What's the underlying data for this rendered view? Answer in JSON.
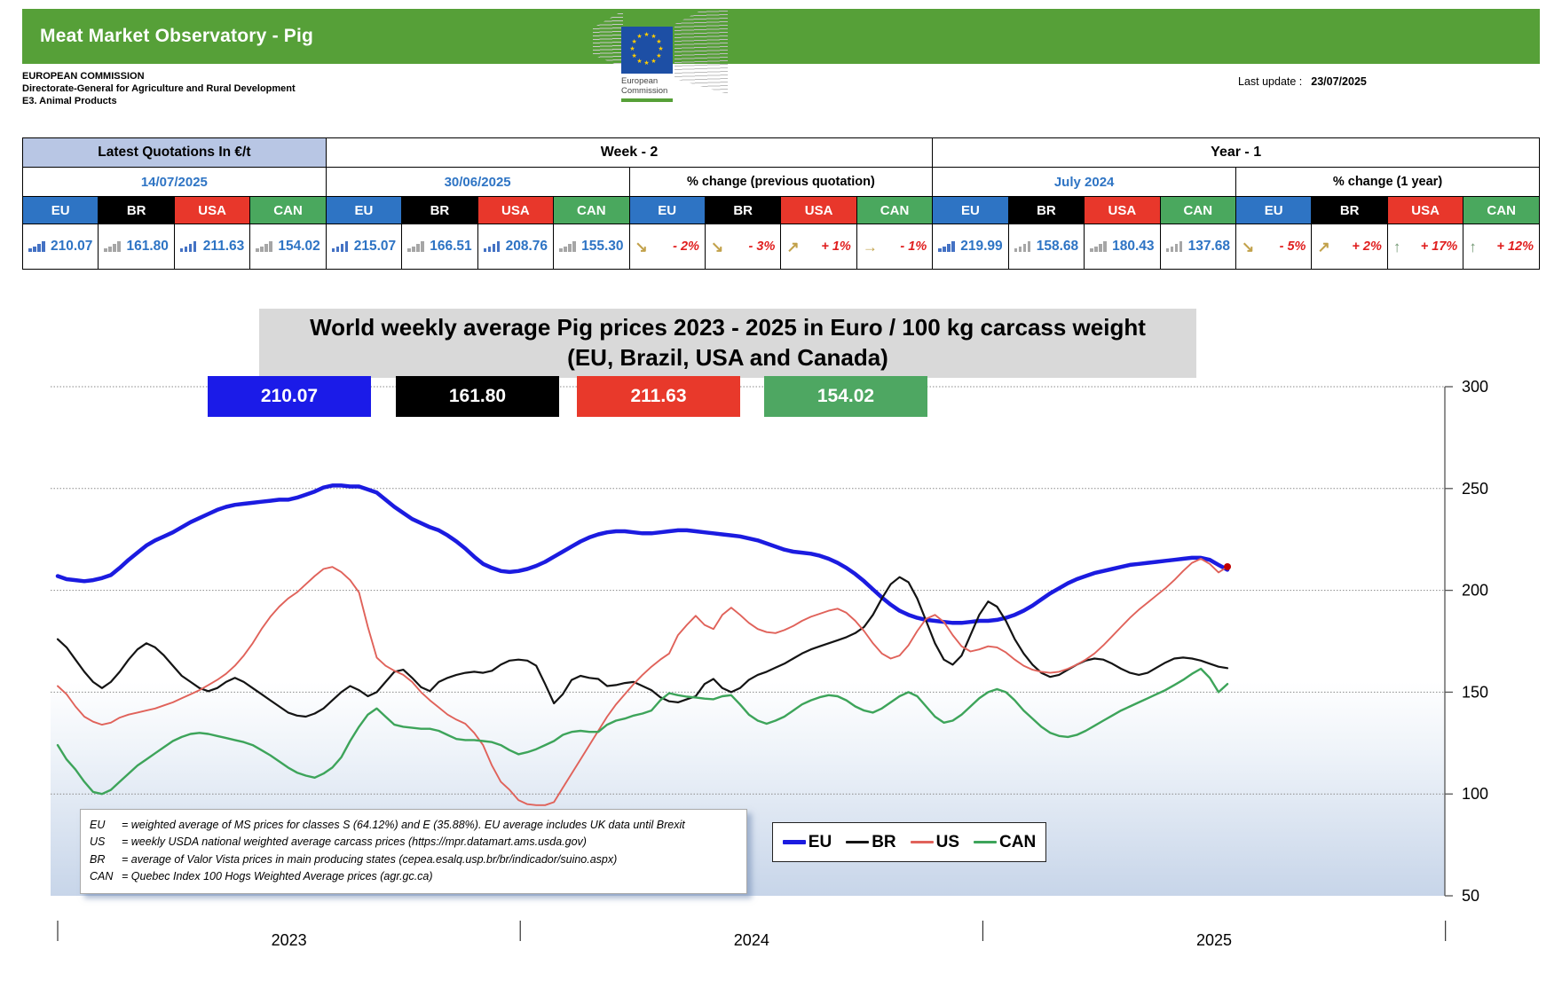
{
  "header": {
    "title": "Meat Market Observatory - Pig",
    "org_line1": "EUROPEAN COMMISSION",
    "org_line2": "Directorate-General for Agriculture and Rural Development",
    "org_line3": "E3. Animal Products",
    "logo_caption_line1": "European",
    "logo_caption_line2": "Commission",
    "last_update_label": "Last update :",
    "last_update_value": "23/07/2025"
  },
  "quotes_table": {
    "group_titles": [
      "Latest Quotations In €/t",
      "Week - 2",
      "Year - 1"
    ],
    "sub_headers": [
      {
        "text": "14/07/2025",
        "kind": "date"
      },
      {
        "text": "30/06/2025",
        "kind": "date"
      },
      {
        "text": "% change (previous quotation)",
        "kind": "pct"
      },
      {
        "text": "July 2024",
        "kind": "date"
      },
      {
        "text": "% change (1 year)",
        "kind": "pct"
      }
    ],
    "columns": [
      "EU",
      "BR",
      "USA",
      "CAN"
    ],
    "column_colors": {
      "EU": "#2e74c4",
      "BR": "#000000",
      "USA": "#e8372b",
      "CAN": "#4aa85e"
    },
    "arrow_glyphs": {
      "arrow-down-right": "↘",
      "arrow-up-right": "↗",
      "arrow-right": "→",
      "arrow-up-green": "↑"
    },
    "arrow_colors": {
      "arrow-down-right": "#c2a14a",
      "arrow-up-right": "#c2a14a",
      "arrow-right": "#c2a14a",
      "arrow-up-green": "#6f9670"
    },
    "cells": [
      {
        "value": "210.07",
        "icon": "bars-blue"
      },
      {
        "value": "161.80",
        "icon": "bars-gray"
      },
      {
        "value": "211.63",
        "icon": "bars-blue"
      },
      {
        "value": "154.02",
        "icon": "bars-gray"
      },
      {
        "value": "215.07",
        "icon": "bars-blue"
      },
      {
        "value": "166.51",
        "icon": "bars-gray"
      },
      {
        "value": "208.76",
        "icon": "bars-blue"
      },
      {
        "value": "155.30",
        "icon": "bars-gray"
      },
      {
        "value": "- 2%",
        "icon": "arrow-down-right"
      },
      {
        "value": "- 3%",
        "icon": "arrow-down-right"
      },
      {
        "value": "+ 1%",
        "icon": "arrow-up-right"
      },
      {
        "value": "- 1%",
        "icon": "arrow-right"
      },
      {
        "value": "219.99",
        "icon": "bars-blue"
      },
      {
        "value": "158.68",
        "icon": "bars-gray"
      },
      {
        "value": "180.43",
        "icon": "bars-gray"
      },
      {
        "value": "137.68",
        "icon": "bars-gray"
      },
      {
        "value": "- 5%",
        "icon": "arrow-down-right"
      },
      {
        "value": "+ 2%",
        "icon": "arrow-up-right"
      },
      {
        "value": "+ 17%",
        "icon": "arrow-up-green"
      },
      {
        "value": "+ 12%",
        "icon": "arrow-up-green"
      }
    ]
  },
  "chart": {
    "title_line1": "World weekly average Pig prices 2023 - 2025  in Euro / 100 kg carcass weight",
    "title_line2": "(EU, Brazil, USA and Canada)",
    "badges": [
      {
        "series": "EU",
        "value": "210.07",
        "color": "#1b1be8"
      },
      {
        "series": "BR",
        "value": "161.80",
        "color": "#000000"
      },
      {
        "series": "USA",
        "value": "211.63",
        "color": "#e8392b"
      },
      {
        "series": "CAN",
        "value": "154.02",
        "color": "#4ea762"
      }
    ],
    "legend": [
      {
        "label": "EU",
        "color": "#1b1be0",
        "thick": true
      },
      {
        "label": "BR",
        "color": "#141414",
        "thick": false
      },
      {
        "label": "US",
        "color": "#e0625a",
        "thick": false
      },
      {
        "label": "CAN",
        "color": "#3da45a",
        "thick": false
      }
    ],
    "footnotes": [
      {
        "abbr": "EU",
        "text": "= weighted average of MS prices for classes S (64.12%) and E (35.88%). EU average includes UK data  until Brexit"
      },
      {
        "abbr": "US",
        "text": "= weekly USDA national weighted average carcass prices (https://mpr.datamart.ams.usda.gov)"
      },
      {
        "abbr": "BR",
        "text": "= average of Valor Vista prices in main producing states (cepea.esalq.usp.br/br/indicador/suino.aspx)"
      },
      {
        "abbr": "CAN",
        "text": "= Quebec Index 100 Hogs Weighted Average prices (agr.gc.ca)"
      }
    ]
  },
  "chart_data": {
    "type": "line",
    "title": "World weekly average Pig prices 2023 - 2025 in Euro / 100 kg carcass weight (EU, Brazil, USA and Canada)",
    "ylabel": "Euro / 100 kg carcass weight",
    "ylim": [
      50,
      300
    ],
    "yticks": [
      300,
      250,
      200,
      150,
      100,
      50
    ],
    "x_unit": "week",
    "x_start": "2023-W01",
    "x_end": "2025-W29",
    "x_year_labels": [
      "2023",
      "2024",
      "2025"
    ],
    "x_tick_weeks": [
      0,
      52.2,
      104.4,
      156.6
    ],
    "grid": true,
    "legend_position": "bottom",
    "end_marker": {
      "week": 132,
      "value": 211.6,
      "color": "#c00000"
    },
    "series": [
      {
        "name": "EU",
        "color": "#1b1be0",
        "line_width": 4.5,
        "values": [
          207,
          205.5,
          205,
          204.5,
          205,
          206,
          207.5,
          211,
          215,
          218.5,
          222,
          224.5,
          226.5,
          228.5,
          231,
          233.5,
          235.5,
          237.5,
          239.5,
          241,
          242,
          242.5,
          243,
          243.5,
          244,
          244.5,
          244.5,
          245.5,
          247,
          248.5,
          250.5,
          251.5,
          251.5,
          251,
          251,
          249.5,
          248,
          244.5,
          241,
          238,
          235,
          233,
          231,
          229.5,
          227,
          224,
          220.5,
          216.5,
          213,
          211,
          209.5,
          209,
          209.5,
          210.5,
          212,
          214,
          216.5,
          219,
          221.5,
          224,
          226,
          227.5,
          228.5,
          229,
          229,
          228.5,
          228,
          228,
          228.5,
          229,
          229.5,
          229.5,
          229,
          228.5,
          228,
          227.5,
          227,
          226.5,
          225.5,
          224.5,
          223,
          221.5,
          220,
          219,
          218.5,
          218,
          217,
          215.5,
          213.5,
          211,
          208,
          204.5,
          200.5,
          196.5,
          193,
          190,
          188,
          186.5,
          185.5,
          185,
          184.5,
          184,
          184,
          184.5,
          185,
          185,
          185.5,
          186.5,
          188,
          190,
          192.5,
          195.5,
          198.5,
          201,
          203.5,
          205.5,
          207,
          208.5,
          209.5,
          210.5,
          211.5,
          212.5,
          213,
          213.5,
          214,
          214.5,
          215,
          215.5,
          216,
          216,
          215,
          212.5,
          210.1
        ]
      },
      {
        "name": "BR",
        "color": "#141414",
        "line_width": 2.2,
        "values": [
          176,
          172,
          166,
          160,
          155,
          152,
          155,
          160,
          166,
          171,
          174,
          172,
          168,
          163,
          158,
          155,
          152,
          150.5,
          152,
          155,
          157,
          155,
          152,
          149,
          146,
          143,
          140,
          138.5,
          138,
          139.5,
          142,
          146,
          150,
          153,
          151,
          148,
          150,
          155,
          160,
          161,
          157,
          152.5,
          150.5,
          155,
          157,
          158.5,
          159.5,
          160,
          159.5,
          160.5,
          163.5,
          165.5,
          166,
          165.5,
          163,
          154,
          144.5,
          149,
          156,
          158,
          157,
          156.5,
          153,
          153.5,
          154.5,
          155,
          153,
          151,
          147.5,
          145.5,
          145,
          146.5,
          148,
          154,
          156.5,
          152,
          150,
          152,
          156,
          158.5,
          160,
          162,
          164,
          166.5,
          169,
          171,
          172.5,
          174,
          175.5,
          177,
          179,
          182,
          188,
          196,
          203,
          206.5,
          204,
          196,
          185,
          174,
          166,
          163.5,
          168,
          178,
          188,
          194.5,
          192,
          185,
          176,
          169,
          163.5,
          159.5,
          157.5,
          158.5,
          161,
          163.5,
          165.5,
          166.5,
          166,
          164,
          161.5,
          159.5,
          158.5,
          159.5,
          162,
          164.5,
          166.5,
          167,
          166.5,
          165.5,
          164,
          162.5,
          161.8
        ]
      },
      {
        "name": "US",
        "color": "#e0625a",
        "line_width": 1.9,
        "values": [
          153,
          149,
          143,
          138,
          135.5,
          134,
          135,
          137.5,
          139,
          140,
          141,
          142,
          143.5,
          145,
          147,
          149,
          151,
          153.5,
          156,
          159,
          163,
          168,
          174,
          181,
          187,
          192,
          196,
          199,
          203,
          207,
          210.5,
          211.5,
          209,
          205,
          199,
          182,
          167,
          163,
          160.5,
          158.5,
          155,
          150,
          146,
          142.5,
          139,
          136.5,
          134.5,
          130,
          124,
          114,
          106,
          102,
          97,
          95,
          94.5,
          94.5,
          96,
          103,
          110,
          117,
          124,
          131,
          138,
          144,
          149,
          154,
          158.5,
          162.5,
          166,
          169,
          178,
          183,
          187.5,
          183,
          181,
          188,
          191.5,
          188,
          184,
          181,
          179.5,
          179,
          180.5,
          182.5,
          185,
          187,
          188.5,
          190,
          191,
          189,
          185,
          180,
          174,
          169,
          166.5,
          168,
          173,
          180,
          186,
          188,
          184.5,
          178,
          172.5,
          170,
          171,
          172.5,
          172,
          169.5,
          166,
          163,
          161,
          160,
          159.5,
          160,
          161.5,
          163.5,
          166,
          169,
          173,
          177.5,
          182,
          186.5,
          190.5,
          194,
          197.5,
          201,
          205,
          209.5,
          213.5,
          215.5,
          213,
          208.8,
          211.6
        ]
      },
      {
        "name": "CAN",
        "color": "#3da45a",
        "line_width": 2.4,
        "values": [
          124,
          117,
          112,
          106,
          101,
          100,
          102,
          106,
          110,
          114,
          117,
          120,
          123,
          126,
          128,
          129.5,
          130,
          129.5,
          128.5,
          127.5,
          126.5,
          125.5,
          124,
          121.5,
          119,
          116,
          113,
          110.5,
          109,
          108,
          110,
          113,
          118,
          126,
          133,
          139,
          142,
          138,
          134,
          133,
          132.5,
          132,
          132,
          131,
          129,
          127,
          126.5,
          126.5,
          126,
          125.5,
          124,
          121.5,
          119.5,
          120.5,
          122,
          124,
          126,
          129,
          130.5,
          131,
          130.5,
          130.5,
          134,
          136,
          137,
          138.5,
          139.5,
          141,
          146,
          149.5,
          148.5,
          147.8,
          147.4,
          146.8,
          146.5,
          148,
          148.5,
          144,
          139,
          136,
          134.5,
          136,
          138,
          141,
          144,
          146,
          147.5,
          148.5,
          148,
          146,
          143,
          141,
          140,
          142,
          145,
          148,
          150,
          148,
          143,
          138,
          135,
          136,
          139,
          143,
          147,
          150,
          151.5,
          150,
          146,
          141,
          137,
          133,
          130,
          128.5,
          128,
          129,
          131,
          133.5,
          136,
          138.5,
          141,
          143,
          145,
          147,
          149,
          151,
          153.5,
          156,
          159,
          161.5,
          157,
          150,
          154
        ]
      }
    ]
  }
}
